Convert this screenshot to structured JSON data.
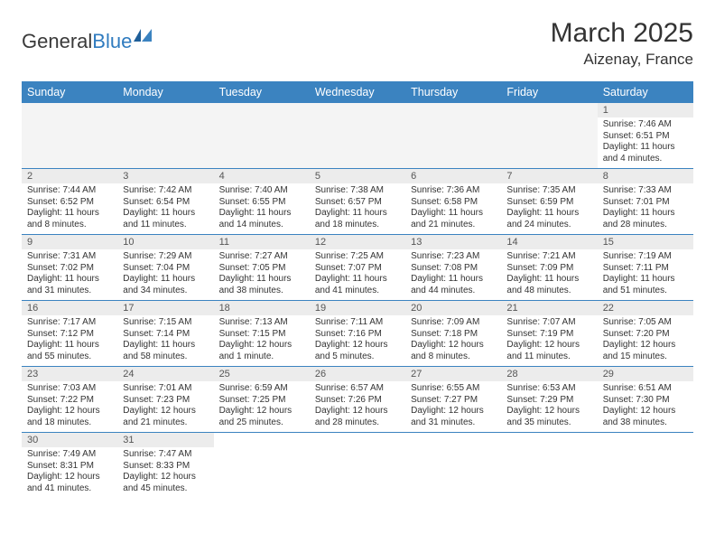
{
  "branding": {
    "part1": "General",
    "part2": "Blue"
  },
  "title": {
    "month": "March 2025",
    "location": "Aizenay, France"
  },
  "weekdays": [
    "Sunday",
    "Monday",
    "Tuesday",
    "Wednesday",
    "Thursday",
    "Friday",
    "Saturday"
  ],
  "colors": {
    "headerBg": "#3b83c0",
    "headerText": "#ffffff",
    "cellBorder": "#3b83c0",
    "dayNumBg": "#ececec"
  },
  "grid": {
    "leadingBlanks": 6,
    "days": [
      {
        "n": 1,
        "sunrise": "7:46 AM",
        "sunset": "6:51 PM",
        "daylight": "11 hours and 4 minutes."
      },
      {
        "n": 2,
        "sunrise": "7:44 AM",
        "sunset": "6:52 PM",
        "daylight": "11 hours and 8 minutes."
      },
      {
        "n": 3,
        "sunrise": "7:42 AM",
        "sunset": "6:54 PM",
        "daylight": "11 hours and 11 minutes."
      },
      {
        "n": 4,
        "sunrise": "7:40 AM",
        "sunset": "6:55 PM",
        "daylight": "11 hours and 14 minutes."
      },
      {
        "n": 5,
        "sunrise": "7:38 AM",
        "sunset": "6:57 PM",
        "daylight": "11 hours and 18 minutes."
      },
      {
        "n": 6,
        "sunrise": "7:36 AM",
        "sunset": "6:58 PM",
        "daylight": "11 hours and 21 minutes."
      },
      {
        "n": 7,
        "sunrise": "7:35 AM",
        "sunset": "6:59 PM",
        "daylight": "11 hours and 24 minutes."
      },
      {
        "n": 8,
        "sunrise": "7:33 AM",
        "sunset": "7:01 PM",
        "daylight": "11 hours and 28 minutes."
      },
      {
        "n": 9,
        "sunrise": "7:31 AM",
        "sunset": "7:02 PM",
        "daylight": "11 hours and 31 minutes."
      },
      {
        "n": 10,
        "sunrise": "7:29 AM",
        "sunset": "7:04 PM",
        "daylight": "11 hours and 34 minutes."
      },
      {
        "n": 11,
        "sunrise": "7:27 AM",
        "sunset": "7:05 PM",
        "daylight": "11 hours and 38 minutes."
      },
      {
        "n": 12,
        "sunrise": "7:25 AM",
        "sunset": "7:07 PM",
        "daylight": "11 hours and 41 minutes."
      },
      {
        "n": 13,
        "sunrise": "7:23 AM",
        "sunset": "7:08 PM",
        "daylight": "11 hours and 44 minutes."
      },
      {
        "n": 14,
        "sunrise": "7:21 AM",
        "sunset": "7:09 PM",
        "daylight": "11 hours and 48 minutes."
      },
      {
        "n": 15,
        "sunrise": "7:19 AM",
        "sunset": "7:11 PM",
        "daylight": "11 hours and 51 minutes."
      },
      {
        "n": 16,
        "sunrise": "7:17 AM",
        "sunset": "7:12 PM",
        "daylight": "11 hours and 55 minutes."
      },
      {
        "n": 17,
        "sunrise": "7:15 AM",
        "sunset": "7:14 PM",
        "daylight": "11 hours and 58 minutes."
      },
      {
        "n": 18,
        "sunrise": "7:13 AM",
        "sunset": "7:15 PM",
        "daylight": "12 hours and 1 minute."
      },
      {
        "n": 19,
        "sunrise": "7:11 AM",
        "sunset": "7:16 PM",
        "daylight": "12 hours and 5 minutes."
      },
      {
        "n": 20,
        "sunrise": "7:09 AM",
        "sunset": "7:18 PM",
        "daylight": "12 hours and 8 minutes."
      },
      {
        "n": 21,
        "sunrise": "7:07 AM",
        "sunset": "7:19 PM",
        "daylight": "12 hours and 11 minutes."
      },
      {
        "n": 22,
        "sunrise": "7:05 AM",
        "sunset": "7:20 PM",
        "daylight": "12 hours and 15 minutes."
      },
      {
        "n": 23,
        "sunrise": "7:03 AM",
        "sunset": "7:22 PM",
        "daylight": "12 hours and 18 minutes."
      },
      {
        "n": 24,
        "sunrise": "7:01 AM",
        "sunset": "7:23 PM",
        "daylight": "12 hours and 21 minutes."
      },
      {
        "n": 25,
        "sunrise": "6:59 AM",
        "sunset": "7:25 PM",
        "daylight": "12 hours and 25 minutes."
      },
      {
        "n": 26,
        "sunrise": "6:57 AM",
        "sunset": "7:26 PM",
        "daylight": "12 hours and 28 minutes."
      },
      {
        "n": 27,
        "sunrise": "6:55 AM",
        "sunset": "7:27 PM",
        "daylight": "12 hours and 31 minutes."
      },
      {
        "n": 28,
        "sunrise": "6:53 AM",
        "sunset": "7:29 PM",
        "daylight": "12 hours and 35 minutes."
      },
      {
        "n": 29,
        "sunrise": "6:51 AM",
        "sunset": "7:30 PM",
        "daylight": "12 hours and 38 minutes."
      },
      {
        "n": 30,
        "sunrise": "7:49 AM",
        "sunset": "8:31 PM",
        "daylight": "12 hours and 41 minutes."
      },
      {
        "n": 31,
        "sunrise": "7:47 AM",
        "sunset": "8:33 PM",
        "daylight": "12 hours and 45 minutes."
      }
    ]
  },
  "labels": {
    "sunrise": "Sunrise:",
    "sunset": "Sunset:",
    "daylight": "Daylight:"
  }
}
